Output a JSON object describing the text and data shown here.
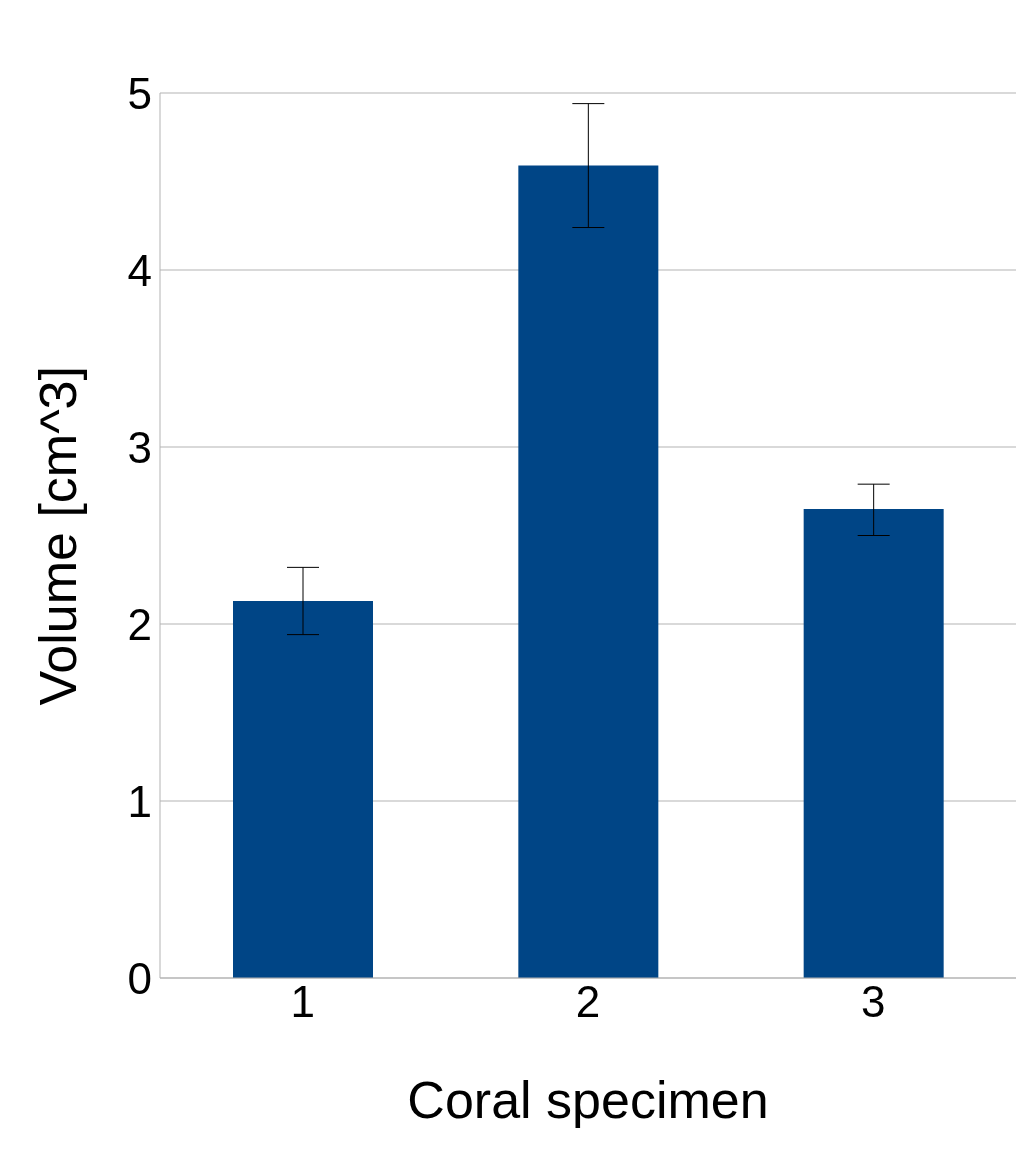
{
  "chart_data": {
    "type": "bar",
    "xlabel": "Coral specimen",
    "ylabel": "Volume [cm^3]",
    "categories": [
      "1",
      "2",
      "3"
    ],
    "values": [
      2.13,
      4.59,
      2.65
    ],
    "errors": [
      [
        1.94,
        2.32
      ],
      [
        4.24,
        4.94
      ],
      [
        2.5,
        2.79
      ]
    ],
    "color": "#004586",
    "ylim": [
      0,
      5
    ],
    "yticks": [
      0,
      1,
      2,
      3,
      4,
      5
    ],
    "grid": "y"
  }
}
